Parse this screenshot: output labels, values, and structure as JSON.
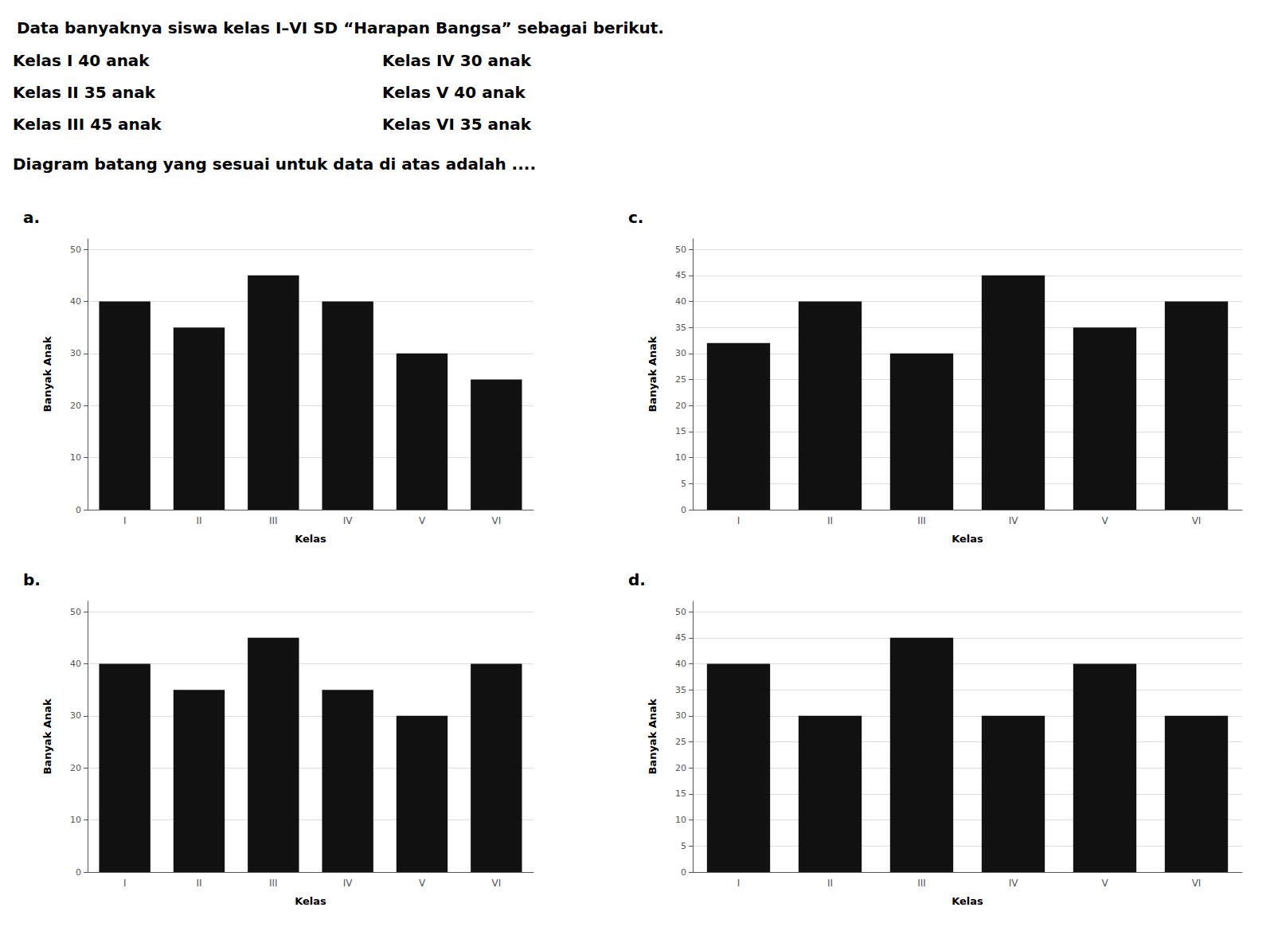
{
  "title": "Data banyaknya siswa kelas I–VI SD “Harapan Bangsa” sebagai berikut.",
  "annotations": [
    [
      "Kelas I 40 anak",
      "Kelas IV 30 anak"
    ],
    [
      "Kelas II 35 anak",
      "Kelas V 40 anak"
    ],
    [
      "Kelas III 45 anak",
      "Kelas VI 35 anak"
    ],
    [
      "Diagram batang yang sesuai untuk data di atas adalah ...."
    ]
  ],
  "chart_data": [
    {
      "type": "bar",
      "title": "a.",
      "categories": [
        "I",
        "II",
        "III",
        "IV",
        "V",
        "VI"
      ],
      "values": [
        40,
        35,
        45,
        40,
        30,
        25
      ],
      "color": "#111111",
      "xlabel": "Kelas",
      "ylabel": "Banyak Anak",
      "ylim": [
        0,
        52
      ],
      "yticks": [
        0,
        10,
        20,
        30,
        40,
        50
      ],
      "grid": true
    },
    {
      "type": "bar",
      "title": "b.",
      "categories": [
        "I",
        "II",
        "III",
        "IV",
        "V",
        "VI"
      ],
      "values": [
        40,
        35,
        45,
        35,
        30,
        40
      ],
      "color": "#111111",
      "xlabel": "Kelas",
      "ylabel": "Banyak Anak",
      "ylim": [
        0,
        52
      ],
      "yticks": [
        0,
        10,
        20,
        30,
        40,
        50
      ],
      "grid": true
    },
    {
      "type": "bar",
      "title": "c.",
      "categories": [
        "I",
        "II",
        "III",
        "IV",
        "V",
        "VI"
      ],
      "values": [
        32,
        40,
        30,
        45,
        35,
        40
      ],
      "color": "#111111",
      "xlabel": "Kelas",
      "ylabel": "Banyak Anak",
      "ylim": [
        0,
        52
      ],
      "yticks": [
        0,
        5,
        10,
        15,
        20,
        25,
        30,
        35,
        40,
        45,
        50
      ],
      "grid": true
    },
    {
      "type": "bar",
      "title": "d.",
      "categories": [
        "I",
        "II",
        "III",
        "IV",
        "V",
        "VI"
      ],
      "values": [
        40,
        30,
        45,
        30,
        40,
        30
      ],
      "color": "#111111",
      "xlabel": "Kelas",
      "ylabel": "Banyak Anak",
      "ylim": [
        0,
        52
      ],
      "yticks": [
        0,
        5,
        10,
        15,
        20,
        25,
        30,
        35,
        40,
        45,
        50
      ],
      "grid": true
    }
  ]
}
